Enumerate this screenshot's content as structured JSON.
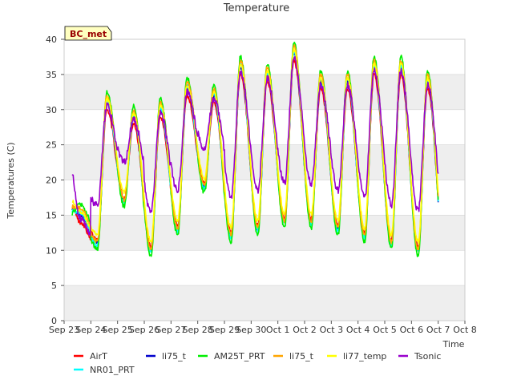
{
  "chart_data": {
    "type": "line",
    "title": "Temperature",
    "xlabel": "Time",
    "ylabel": "Temperatures (C)",
    "site_label": "BC_met",
    "ylim": [
      0,
      40
    ],
    "yticks": [
      0,
      5,
      10,
      15,
      20,
      25,
      30,
      35,
      40
    ],
    "xlim": [
      0,
      15
    ],
    "xtick_labels": [
      "Sep 23",
      "Sep 24",
      "Sep 25",
      "Sep 26",
      "Sep 27",
      "Sep 28",
      "Sep 29",
      "Sep 30",
      "Oct 1",
      "Oct 2",
      "Oct 3",
      "Oct 4",
      "Oct 5",
      "Oct 6",
      "Oct 7",
      "Oct 8"
    ],
    "x_units": "days since Sep 23 00:00 (series start Sep 23.3, end Oct 7.0)",
    "grid": true,
    "band_shading": true,
    "legend_position": "bottom",
    "daily": {
      "days": [
        "Sep 23",
        "Sep 24",
        "Sep 25",
        "Sep 26",
        "Sep 27",
        "Sep 28",
        "Sep 29",
        "Sep 30",
        "Oct 1",
        "Oct 2",
        "Oct 3",
        "Oct 4",
        "Oct 5",
        "Oct 6",
        "Oct 7"
      ],
      "min_air": [
        16,
        11,
        17,
        10,
        13,
        19,
        12,
        13,
        14,
        14,
        13,
        12,
        11,
        10,
        9
      ],
      "max_air": [
        15,
        31,
        29,
        30,
        33,
        32,
        36,
        35,
        38,
        34,
        34,
        36,
        36,
        34,
        33
      ]
    },
    "series": [
      {
        "name": "AirT",
        "color": "#ff0000",
        "offset_max": -1.0,
        "offset_min": 0.5,
        "noise": 0.3
      },
      {
        "name": "li75_t",
        "color": "#0000cc",
        "offset_max": 0.0,
        "offset_min": 0.0,
        "noise": 0.25
      },
      {
        "name": "AM25T_PRT",
        "color": "#00ee00",
        "offset_max": 1.5,
        "offset_min": -0.8,
        "noise": 0.3
      },
      {
        "name": "li75_t",
        "color": "#ffa500",
        "offset_max": 1.0,
        "offset_min": 0.2,
        "noise": 0.3
      },
      {
        "name": "li77_temp",
        "color": "#ffff00",
        "offset_max": 0.5,
        "offset_min": 1.2,
        "noise": 0.3
      },
      {
        "name": "Tsonic",
        "color": "#9900cc",
        "offset_max": -0.5,
        "offset_min": 5.5,
        "noise": 0.5
      },
      {
        "name": "NR01_PRT",
        "color": "#00ffff",
        "offset_max": 0.3,
        "offset_min": -0.3,
        "noise": 0.3
      }
    ],
    "legend_rows": [
      [
        "AirT",
        "li75_t",
        "AM25T_PRT",
        "li75_t",
        "li77_temp",
        "Tsonic"
      ],
      [
        "NR01_PRT"
      ]
    ]
  }
}
